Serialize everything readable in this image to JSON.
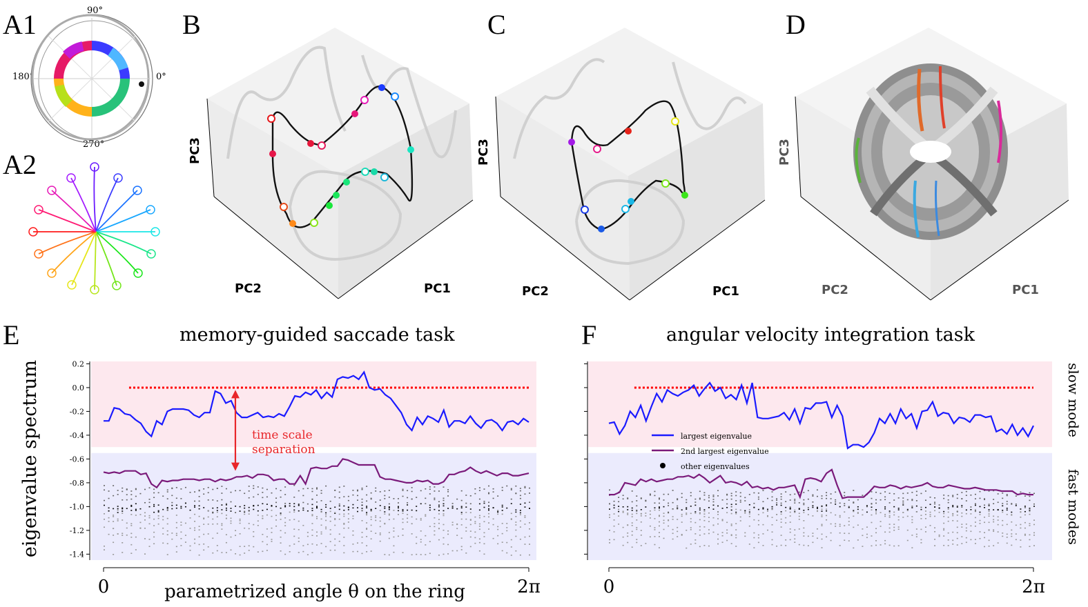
{
  "panels": {
    "a1": "A1",
    "a2": "A2",
    "b": "B",
    "c": "C",
    "d": "D",
    "e": "E",
    "f": "F"
  },
  "a1_angles": {
    "deg90": "90°",
    "deg180": "180°",
    "deg0": "0°",
    "deg270": "270°"
  },
  "axes3d": {
    "b": {
      "pc1": "PC1",
      "pc2": "PC2",
      "pc3": "PC3"
    },
    "c": {
      "pc1": "PC1",
      "pc2": "PC2",
      "pc3": "PC3"
    },
    "d": {
      "pc1": "PC1",
      "pc2": "PC2",
      "pc3": "PC3"
    }
  },
  "colors": {
    "largest": "#1a1aff",
    "second": "#7a1a7a",
    "others": "#444444",
    "slow_band": "#fde8ee",
    "fast_band": "#ebebfd",
    "zero_line": "#ff0000",
    "annotation": "#e8262a"
  },
  "chart_data": [
    {
      "type": "line",
      "id": "E",
      "title": "memory-guided saccade task",
      "ylabel": "eigenvalue spectrum",
      "xlabel": "parametrized angle θ on the ring",
      "x_tick_labels": [
        "0",
        "2π"
      ],
      "ylim": [
        -1.45,
        0.22
      ],
      "y_ticks": [
        0.2,
        0.0,
        -0.2,
        -0.4,
        -0.6,
        -0.8,
        -1.0,
        -1.2,
        -1.4
      ],
      "y_tick_labels": [
        "0.2",
        "0.0",
        "-0.2",
        "-0.4",
        "-0.6",
        "-0.8",
        "-1.0",
        "-1.2",
        "-1.4"
      ],
      "zero_line": 0.0,
      "annotation": {
        "line1": "time scale",
        "line2": "separation",
        "from": -0.02,
        "to": -0.7,
        "x_frac": 0.31
      },
      "series": [
        {
          "name": "largest eigenvalue",
          "values": [
            -0.28,
            -0.28,
            -0.17,
            -0.18,
            -0.22,
            -0.23,
            -0.27,
            -0.3,
            -0.37,
            -0.41,
            -0.28,
            -0.31,
            -0.2,
            -0.18,
            -0.18,
            -0.18,
            -0.19,
            -0.23,
            -0.25,
            -0.21,
            -0.21,
            -0.03,
            -0.05,
            -0.13,
            -0.11,
            -0.21,
            -0.25,
            -0.25,
            -0.23,
            -0.21,
            -0.25,
            -0.24,
            -0.25,
            -0.22,
            -0.24,
            -0.16,
            -0.07,
            -0.08,
            -0.04,
            -0.06,
            -0.02,
            -0.09,
            -0.04,
            -0.08,
            0.07,
            0.09,
            0.08,
            0.1,
            0.07,
            0.13,
            0.0,
            -0.02,
            -0.01,
            -0.06,
            -0.09,
            -0.15,
            -0.21,
            -0.31,
            -0.36,
            -0.25,
            -0.31,
            -0.24,
            -0.26,
            -0.29,
            -0.19,
            -0.33,
            -0.28,
            -0.28,
            -0.3,
            -0.24,
            -0.3,
            -0.34,
            -0.28,
            -0.27,
            -0.3,
            -0.36,
            -0.29,
            -0.28,
            -0.31,
            -0.26,
            -0.29
          ]
        },
        {
          "name": "2nd largest eigenvalue",
          "values": [
            -0.71,
            -0.72,
            -0.71,
            -0.72,
            -0.7,
            -0.7,
            -0.7,
            -0.73,
            -0.72,
            -0.81,
            -0.84,
            -0.78,
            -0.79,
            -0.78,
            -0.78,
            -0.77,
            -0.77,
            -0.77,
            -0.78,
            -0.77,
            -0.77,
            -0.79,
            -0.77,
            -0.78,
            -0.77,
            -0.75,
            -0.75,
            -0.74,
            -0.76,
            -0.73,
            -0.73,
            -0.74,
            -0.78,
            -0.77,
            -0.77,
            -0.81,
            -0.81,
            -0.74,
            -0.81,
            -0.68,
            -0.67,
            -0.68,
            -0.68,
            -0.66,
            -0.66,
            -0.6,
            -0.61,
            -0.63,
            -0.65,
            -0.65,
            -0.65,
            -0.65,
            -0.75,
            -0.77,
            -0.77,
            -0.78,
            -0.79,
            -0.8,
            -0.8,
            -0.78,
            -0.79,
            -0.78,
            -0.81,
            -0.81,
            -0.79,
            -0.73,
            -0.73,
            -0.71,
            -0.7,
            -0.67,
            -0.7,
            -0.72,
            -0.7,
            -0.72,
            -0.74,
            -0.72,
            -0.72,
            -0.74,
            -0.74,
            -0.73,
            -0.72
          ]
        },
        {
          "name": "other eigenvalues",
          "levels": [
            -0.84,
            -0.86,
            -0.91,
            -0.95,
            -0.99,
            -1.01,
            -1.03,
            -1.05,
            -1.08,
            -1.12,
            -1.16,
            -1.2,
            -1.25,
            -1.31,
            -1.38
          ]
        }
      ]
    },
    {
      "type": "line",
      "id": "F",
      "title": "angular velocity integration task",
      "x_tick_labels": [
        "0",
        "2π"
      ],
      "ylim": [
        -1.45,
        0.22
      ],
      "zero_line": 0.0,
      "right_labels": {
        "slow": "slow mode",
        "fast": "fast modes"
      },
      "legend": {
        "largest": "largest eigenvalue",
        "second": "2nd largest eigenvalue",
        "others": "other eigenvalues"
      },
      "series": [
        {
          "name": "largest eigenvalue",
          "values": [
            -0.3,
            -0.29,
            -0.39,
            -0.32,
            -0.2,
            -0.25,
            -0.15,
            -0.28,
            -0.16,
            -0.05,
            -0.12,
            -0.02,
            -0.05,
            -0.07,
            -0.04,
            -0.02,
            0.02,
            -0.07,
            -0.01,
            0.04,
            -0.03,
            0.0,
            -0.09,
            -0.06,
            -0.1,
            0.02,
            -0.13,
            0.04,
            -0.25,
            -0.26,
            -0.26,
            -0.25,
            -0.24,
            -0.21,
            -0.27,
            -0.18,
            -0.3,
            -0.17,
            -0.18,
            -0.13,
            -0.13,
            -0.12,
            -0.25,
            -0.15,
            -0.24,
            -0.51,
            -0.48,
            -0.48,
            -0.5,
            -0.46,
            -0.38,
            -0.26,
            -0.3,
            -0.22,
            -0.3,
            -0.18,
            -0.26,
            -0.22,
            -0.34,
            -0.2,
            -0.19,
            -0.12,
            -0.24,
            -0.21,
            -0.22,
            -0.3,
            -0.25,
            -0.26,
            -0.29,
            -0.23,
            -0.23,
            -0.25,
            -0.24,
            -0.37,
            -0.35,
            -0.39,
            -0.31,
            -0.4,
            -0.34,
            -0.41,
            -0.32
          ]
        },
        {
          "name": "2nd largest eigenvalue",
          "values": [
            -0.9,
            -0.9,
            -0.88,
            -0.8,
            -0.81,
            -0.82,
            -0.77,
            -0.79,
            -0.77,
            -0.79,
            -0.78,
            -0.77,
            -0.77,
            -0.75,
            -0.75,
            -0.74,
            -0.76,
            -0.73,
            -0.76,
            -0.8,
            -0.77,
            -0.74,
            -0.8,
            -0.79,
            -0.8,
            -0.82,
            -0.79,
            -0.84,
            -0.83,
            -0.85,
            -0.84,
            -0.86,
            -0.84,
            -0.84,
            -0.83,
            -0.82,
            -0.92,
            -0.77,
            -0.76,
            -0.77,
            -0.79,
            -0.72,
            -0.69,
            -0.82,
            -0.93,
            -0.92,
            -0.92,
            -0.92,
            -0.92,
            -0.88,
            -0.83,
            -0.84,
            -0.84,
            -0.82,
            -0.83,
            -0.85,
            -0.83,
            -0.84,
            -0.83,
            -0.82,
            -0.8,
            -0.83,
            -0.84,
            -0.84,
            -0.82,
            -0.83,
            -0.84,
            -0.85,
            -0.85,
            -0.84,
            -0.85,
            -0.86,
            -0.86,
            -0.86,
            -0.87,
            -0.87,
            -0.87,
            -0.9,
            -0.89,
            -0.9,
            -0.9
          ]
        },
        {
          "name": "other eigenvalues",
          "levels": [
            -0.88,
            -0.92,
            -0.95,
            -0.98,
            -1.0,
            -1.02,
            -1.04,
            -1.06,
            -1.09,
            -1.13,
            -1.17,
            -1.21,
            -1.26,
            -1.32
          ]
        }
      ]
    }
  ]
}
